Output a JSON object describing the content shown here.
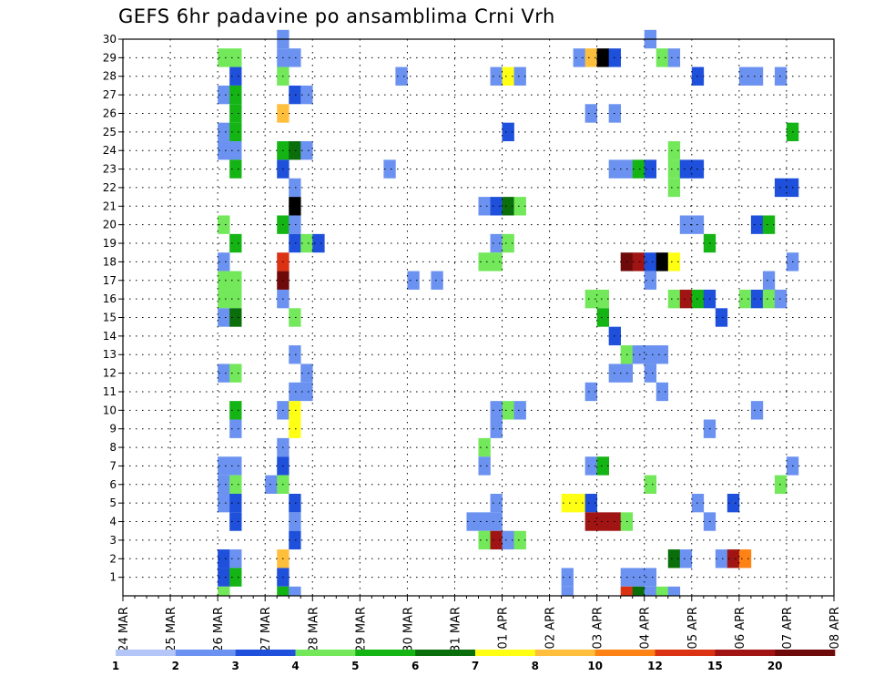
{
  "chart_data": {
    "type": "heatmap",
    "title": "GEFS 6hr padavine po ansamblima Crni Vrh",
    "xlabel": "",
    "ylabel": "",
    "x_tick_labels": [
      "24 MAR",
      "25 MAR",
      "26 MAR",
      "27 MAR",
      "28 MAR",
      "29 MAR",
      "30 MAR",
      "31 MAR",
      "01 APR",
      "02 APR",
      "03 APR",
      "04 APR",
      "05 APR",
      "06 APR",
      "07 APR",
      "08 APR"
    ],
    "y_ticks": [
      1,
      2,
      3,
      4,
      5,
      6,
      7,
      8,
      9,
      10,
      11,
      12,
      13,
      14,
      15,
      16,
      17,
      18,
      19,
      20,
      21,
      22,
      23,
      24,
      25,
      26,
      27,
      28,
      29,
      30
    ],
    "ylim": [
      0,
      30
    ],
    "steps_per_day": 4,
    "grid": true,
    "color_scale": {
      "labels": [
        "1",
        "2",
        "3",
        "4",
        "5",
        "6",
        "7",
        "8",
        "10",
        "12",
        "15",
        "20"
      ],
      "colors": [
        "#b3c6f7",
        "#6b92f0",
        "#1e50dc",
        "#72e85a",
        "#14b414",
        "#0a6e0a",
        "#ffff14",
        "#ffbe3c",
        "#ff8214",
        "#dc3214",
        "#a01414",
        "#6e0a0a"
      ]
    },
    "cells": [
      [
        8,
        29,
        3
      ],
      [
        9,
        29,
        3
      ],
      [
        9,
        28,
        2
      ],
      [
        8,
        27,
        1
      ],
      [
        9,
        27,
        4
      ],
      [
        9,
        26,
        4
      ],
      [
        8,
        25,
        1
      ],
      [
        9,
        25,
        4
      ],
      [
        8,
        24,
        1
      ],
      [
        9,
        24,
        1
      ],
      [
        9,
        23,
        4
      ],
      [
        8,
        20,
        3
      ],
      [
        9,
        19,
        4
      ],
      [
        8,
        18,
        1
      ],
      [
        8,
        17,
        3
      ],
      [
        9,
        17,
        3
      ],
      [
        8,
        16,
        3
      ],
      [
        9,
        16,
        3
      ],
      [
        8,
        15,
        1
      ],
      [
        9,
        15,
        5
      ],
      [
        8,
        12,
        1
      ],
      [
        9,
        12,
        3
      ],
      [
        9,
        10,
        4
      ],
      [
        9,
        9,
        1
      ],
      [
        8,
        7,
        1
      ],
      [
        9,
        7,
        1
      ],
      [
        8,
        6,
        1
      ],
      [
        9,
        6,
        3
      ],
      [
        8,
        5,
        1
      ],
      [
        9,
        5,
        2
      ],
      [
        9,
        4,
        2
      ],
      [
        8,
        2,
        2
      ],
      [
        9,
        2,
        1
      ],
      [
        8,
        1,
        2
      ],
      [
        9,
        1,
        4
      ],
      [
        8,
        0,
        3
      ],
      [
        13,
        30,
        1
      ],
      [
        13,
        29,
        1
      ],
      [
        14,
        29,
        1
      ],
      [
        13,
        28,
        3
      ],
      [
        14,
        27,
        2
      ],
      [
        15,
        27,
        1
      ],
      [
        13,
        26,
        7
      ],
      [
        13,
        24,
        4
      ],
      [
        14,
        24,
        5
      ],
      [
        15,
        24,
        1
      ],
      [
        13,
        23,
        2
      ],
      [
        14,
        22,
        1
      ],
      [
        14,
        21,
        12
      ],
      [
        13,
        20,
        4
      ],
      [
        14,
        20,
        1
      ],
      [
        14,
        19,
        2
      ],
      [
        15,
        19,
        3
      ],
      [
        16,
        19,
        2
      ],
      [
        13,
        18,
        9
      ],
      [
        13,
        17,
        11
      ],
      [
        13,
        16,
        1
      ],
      [
        14,
        15,
        3
      ],
      [
        14,
        13,
        1
      ],
      [
        15,
        12,
        1
      ],
      [
        14,
        11,
        1
      ],
      [
        15,
        11,
        1
      ],
      [
        13,
        10,
        1
      ],
      [
        14,
        10,
        6
      ],
      [
        14,
        9,
        6
      ],
      [
        13,
        8,
        1
      ],
      [
        13,
        7,
        2
      ],
      [
        12,
        6,
        1
      ],
      [
        13,
        6,
        3
      ],
      [
        14,
        5,
        2
      ],
      [
        14,
        4,
        1
      ],
      [
        14,
        3,
        2
      ],
      [
        13,
        2,
        7
      ],
      [
        13,
        1,
        2
      ],
      [
        13,
        0,
        4
      ],
      [
        14,
        0,
        1
      ],
      [
        23,
        28,
        1
      ],
      [
        22,
        23,
        1
      ],
      [
        24,
        17,
        1
      ],
      [
        26,
        17,
        1
      ],
      [
        31,
        28,
        1
      ],
      [
        32,
        28,
        6
      ],
      [
        33,
        28,
        1
      ],
      [
        32,
        25,
        2
      ],
      [
        30,
        21,
        1
      ],
      [
        31,
        21,
        2
      ],
      [
        32,
        21,
        5
      ],
      [
        33,
        21,
        3
      ],
      [
        31,
        19,
        1
      ],
      [
        32,
        19,
        3
      ],
      [
        30,
        18,
        3
      ],
      [
        31,
        18,
        3
      ],
      [
        30,
        8,
        3
      ],
      [
        30,
        7,
        1
      ],
      [
        29,
        4,
        1
      ],
      [
        30,
        4,
        1
      ],
      [
        31,
        4,
        1
      ],
      [
        31,
        5,
        1
      ],
      [
        30,
        3,
        3
      ],
      [
        31,
        3,
        10
      ],
      [
        32,
        3,
        1
      ],
      [
        33,
        3,
        3
      ],
      [
        32,
        10,
        3
      ],
      [
        31,
        10,
        1
      ],
      [
        33,
        10,
        1
      ],
      [
        31,
        9,
        1
      ],
      [
        37,
        0,
        1
      ],
      [
        37,
        1,
        1
      ],
      [
        38,
        29,
        1
      ],
      [
        39,
        29,
        7
      ],
      [
        40,
        29,
        12
      ],
      [
        41,
        29,
        2
      ],
      [
        39,
        26,
        1
      ],
      [
        41,
        26,
        1
      ],
      [
        39,
        16,
        3
      ],
      [
        40,
        16,
        3
      ],
      [
        40,
        15,
        4
      ],
      [
        41,
        14,
        2
      ],
      [
        42,
        13,
        3
      ],
      [
        43,
        13,
        1
      ],
      [
        42,
        12,
        1
      ],
      [
        41,
        12,
        1
      ],
      [
        39,
        11,
        1
      ],
      [
        39,
        7,
        1
      ],
      [
        40,
        7,
        4
      ],
      [
        37,
        5,
        6
      ],
      [
        38,
        5,
        6
      ],
      [
        39,
        5,
        2
      ],
      [
        39,
        4,
        10
      ],
      [
        40,
        4,
        10
      ],
      [
        41,
        4,
        10
      ],
      [
        42,
        4,
        3
      ],
      [
        42,
        1,
        1
      ],
      [
        43,
        1,
        1
      ],
      [
        44,
        1,
        1
      ],
      [
        42,
        0,
        9
      ],
      [
        43,
        0,
        5
      ],
      [
        44,
        0,
        1
      ],
      [
        45,
        0,
        3
      ],
      [
        46,
        0,
        1
      ],
      [
        44,
        30,
        1
      ],
      [
        45,
        29,
        3
      ],
      [
        46,
        29,
        1
      ],
      [
        41,
        23,
        1
      ],
      [
        42,
        23,
        1
      ],
      [
        43,
        23,
        4
      ],
      [
        44,
        23,
        2
      ],
      [
        46,
        24,
        3
      ],
      [
        46,
        23,
        3
      ],
      [
        47,
        23,
        2
      ],
      [
        48,
        23,
        2
      ],
      [
        46,
        22,
        3
      ],
      [
        42,
        18,
        11
      ],
      [
        43,
        18,
        10
      ],
      [
        44,
        18,
        2
      ],
      [
        45,
        18,
        12
      ],
      [
        46,
        18,
        6
      ],
      [
        44,
        17,
        1
      ],
      [
        46,
        16,
        3
      ],
      [
        47,
        16,
        10
      ],
      [
        48,
        16,
        4
      ],
      [
        49,
        16,
        2
      ],
      [
        44,
        13,
        1
      ],
      [
        45,
        13,
        1
      ],
      [
        44,
        12,
        1
      ],
      [
        45,
        11,
        1
      ],
      [
        44,
        6,
        3
      ],
      [
        46,
        2,
        5
      ],
      [
        47,
        2,
        1
      ],
      [
        47,
        20,
        1
      ],
      [
        48,
        20,
        1
      ],
      [
        49,
        19,
        4
      ],
      [
        48,
        5,
        1
      ],
      [
        48,
        28,
        2
      ],
      [
        52,
        28,
        1
      ],
      [
        53,
        28,
        1
      ],
      [
        55,
        28,
        1
      ],
      [
        56,
        25,
        4
      ],
      [
        55,
        22,
        2
      ],
      [
        56,
        22,
        2
      ],
      [
        53,
        20,
        2
      ],
      [
        54,
        20,
        4
      ],
      [
        56,
        18,
        1
      ],
      [
        54,
        17,
        1
      ],
      [
        52,
        16,
        3
      ],
      [
        53,
        16,
        2
      ],
      [
        54,
        16,
        3
      ],
      [
        55,
        16,
        1
      ],
      [
        51,
        5,
        2
      ],
      [
        49,
        4,
        1
      ],
      [
        49,
        9,
        1
      ],
      [
        53,
        10,
        1
      ],
      [
        55,
        6,
        3
      ],
      [
        56,
        7,
        1
      ],
      [
        50,
        15,
        2
      ],
      [
        50,
        2,
        1
      ],
      [
        51,
        2,
        10
      ],
      [
        52,
        2,
        8
      ]
    ]
  }
}
